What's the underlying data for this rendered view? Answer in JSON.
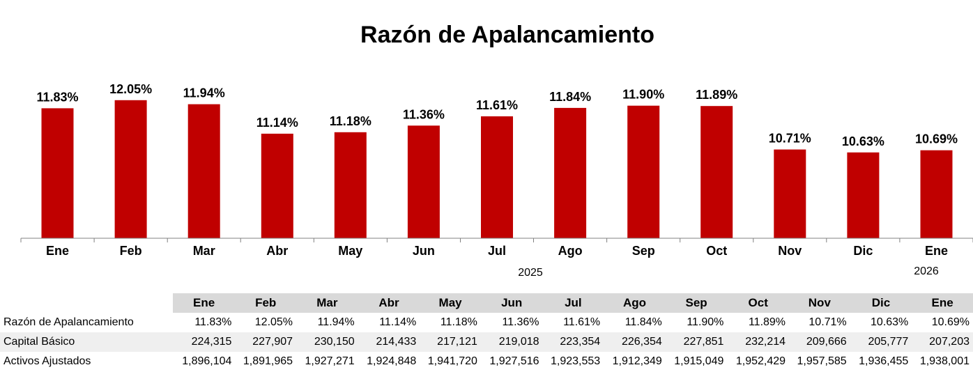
{
  "chart_data": {
    "type": "bar",
    "title": "Razón de Apalancamiento",
    "categories": [
      "Ene",
      "Feb",
      "Mar",
      "Abr",
      "May",
      "Jun",
      "Jul",
      "Ago",
      "Sep",
      "Oct",
      "Nov",
      "Dic",
      "Ene"
    ],
    "values": [
      11.83,
      12.05,
      11.94,
      11.14,
      11.18,
      11.36,
      11.61,
      11.84,
      11.9,
      11.89,
      10.71,
      10.63,
      10.69
    ],
    "value_labels": [
      "11.83%",
      "12.05%",
      "11.94%",
      "11.14%",
      "11.18%",
      "11.36%",
      "11.61%",
      "11.84%",
      "11.90%",
      "11.89%",
      "10.71%",
      "10.63%",
      "10.69%"
    ],
    "year_labels": [
      "2025",
      "2026"
    ],
    "ylim": [
      8.3,
      12.5
    ],
    "bar_color": "#c00000",
    "grid": false,
    "legend": "none"
  },
  "table": {
    "headers": [
      "Ene",
      "Feb",
      "Mar",
      "Abr",
      "May",
      "Jun",
      "Jul",
      "Ago",
      "Sep",
      "Oct",
      "Nov",
      "Dic",
      "Ene"
    ],
    "rows": [
      {
        "label": "Razón de Apalancamiento",
        "values": [
          "11.83%",
          "12.05%",
          "11.94%",
          "11.14%",
          "11.18%",
          "11.36%",
          "11.61%",
          "11.84%",
          "11.90%",
          "11.89%",
          "10.71%",
          "10.63%",
          "10.69%"
        ]
      },
      {
        "label": "Capital Básico",
        "values": [
          "224,315",
          "227,907",
          "230,150",
          "214,433",
          "217,121",
          "219,018",
          "223,354",
          "226,354",
          "227,851",
          "232,214",
          "209,666",
          "205,777",
          "207,203"
        ]
      },
      {
        "label": "Activos Ajustados",
        "values": [
          "1,896,104",
          "1,891,965",
          "1,927,271",
          "1,924,848",
          "1,941,720",
          "1,927,516",
          "1,923,553",
          "1,912,349",
          "1,915,049",
          "1,952,429",
          "1,957,585",
          "1,936,455",
          "1,938,001"
        ]
      }
    ]
  }
}
